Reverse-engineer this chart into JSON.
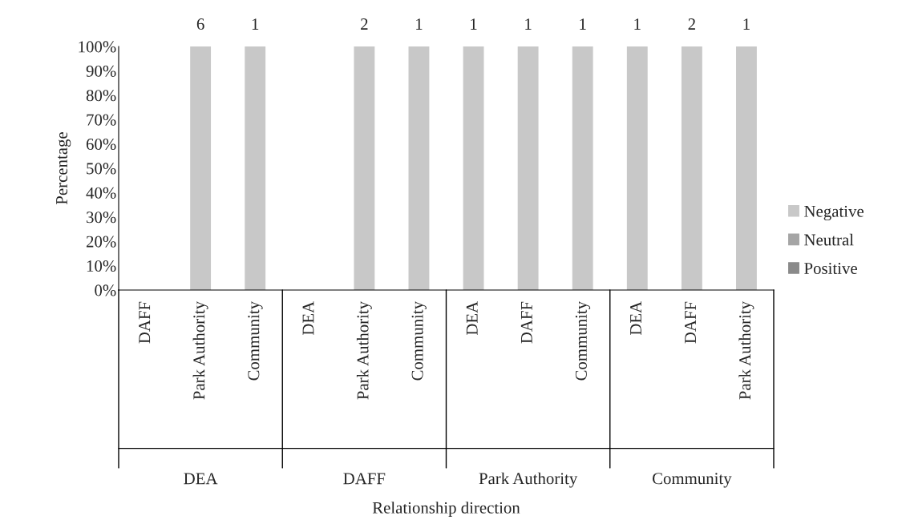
{
  "chart_data": {
    "type": "bar",
    "stacked": true,
    "ylabel": "Percentage",
    "categories": [
      "DAFF",
      "Park Authority",
      "Community",
      "DEA",
      "Park Authority",
      "Community",
      "DEA",
      "DAFF",
      "Community",
      "DEA",
      "DAFF",
      "Park Authority"
    ],
    "series": [
      {
        "name": "Negative",
        "color": "#c8c8c8",
        "values": [
          0,
          100,
          100,
          0,
          100,
          100,
          100,
          100,
          100,
          100,
          100,
          100
        ]
      },
      {
        "name": "Neutral",
        "color": "#a5a5a5",
        "values": [
          0,
          0,
          0,
          0,
          0,
          0,
          0,
          0,
          0,
          0,
          0,
          0
        ]
      },
      {
        "name": "Positive",
        "color": "#8a8a8a",
        "values": [
          0,
          0,
          0,
          0,
          0,
          0,
          0,
          0,
          0,
          0,
          0,
          0
        ]
      }
    ],
    "annotations": [
      "Relationship direction",
      "DEA",
      "DAFF",
      "Park Authority",
      "Community",
      "6",
      "1",
      "2",
      "1",
      "1",
      "1",
      "1",
      "1",
      "2",
      "1"
    ],
    "ylim": [
      0,
      100
    ],
    "yticks": [
      {
        "value": 0,
        "label": "0%"
      },
      {
        "value": 10,
        "label": "10%"
      },
      {
        "value": 20,
        "label": "20%"
      },
      {
        "value": 30,
        "label": "30%"
      },
      {
        "value": 40,
        "label": "40%"
      },
      {
        "value": 50,
        "label": "50%"
      },
      {
        "value": 60,
        "label": "60%"
      },
      {
        "value": 70,
        "label": "70%"
      },
      {
        "value": 80,
        "label": "80%"
      },
      {
        "value": 90,
        "label": "90%"
      },
      {
        "value": 100,
        "label": "100%"
      }
    ],
    "grid": false,
    "legend": "right"
  }
}
